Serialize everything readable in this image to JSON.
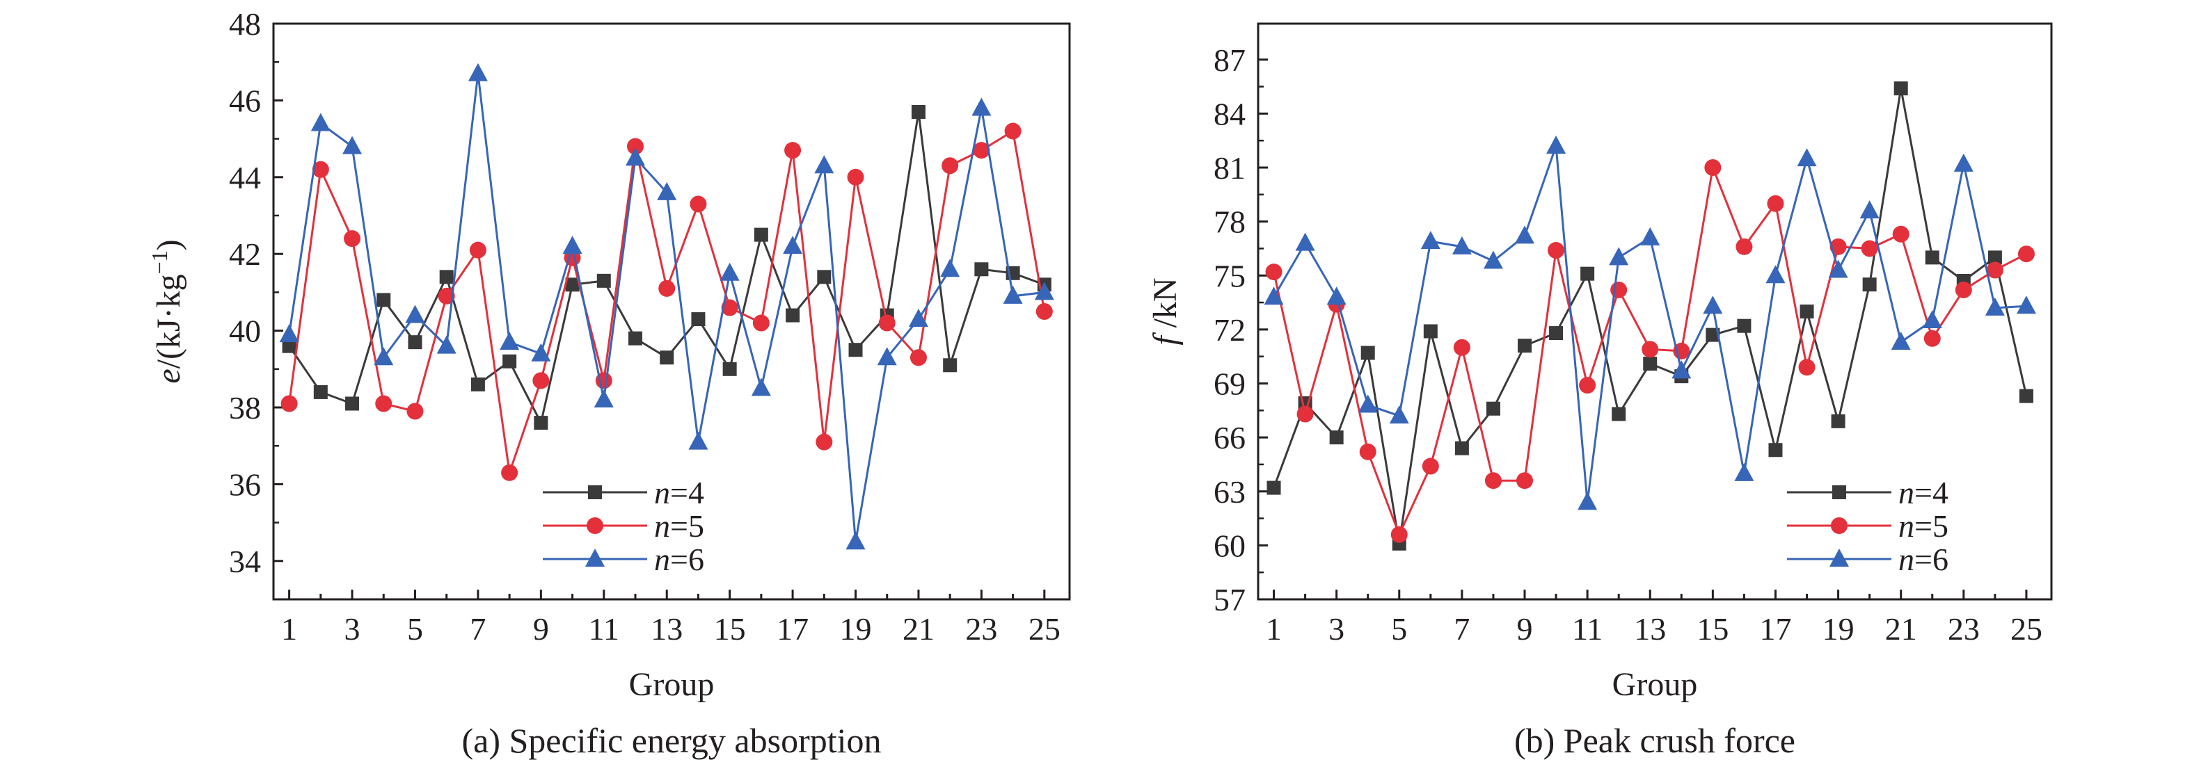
{
  "chart_data": [
    {
      "type": "line",
      "caption": "(a) Specific energy absorption",
      "xlabel": "Group",
      "ylabel": {
        "var": "e",
        "unit": "/(kJ·kg",
        "sup": "−1",
        "close": ")"
      },
      "xlim": [
        0.5,
        25.8
      ],
      "ylim": [
        33,
        48
      ],
      "xticks": [
        1,
        3,
        5,
        7,
        9,
        11,
        13,
        15,
        17,
        19,
        21,
        23,
        25
      ],
      "yticks": [
        34,
        36,
        38,
        40,
        42,
        44,
        46,
        48
      ],
      "x": [
        1,
        2,
        3,
        4,
        5,
        6,
        7,
        8,
        9,
        10,
        11,
        12,
        13,
        14,
        15,
        16,
        17,
        18,
        19,
        20,
        21,
        22,
        23,
        24,
        25
      ],
      "legend_position": "bottom-center",
      "series": [
        {
          "name_var": "n",
          "name_val": "=4",
          "color": "#3a3a3a",
          "marker": "square",
          "values": [
            39.6,
            38.4,
            38.1,
            40.8,
            39.7,
            41.4,
            38.6,
            39.2,
            37.6,
            41.2,
            41.3,
            39.8,
            39.3,
            40.3,
            39.0,
            42.5,
            40.4,
            41.4,
            39.5,
            40.4,
            45.7,
            39.1,
            41.6,
            41.5,
            41.2
          ]
        },
        {
          "name_var": "n",
          "name_val": "=5",
          "color": "#e3303b",
          "marker": "circle",
          "values": [
            38.1,
            44.2,
            42.4,
            38.1,
            37.9,
            40.9,
            42.1,
            36.3,
            38.7,
            41.9,
            38.7,
            44.8,
            41.1,
            43.3,
            40.6,
            40.2,
            44.7,
            37.1,
            44.0,
            40.2,
            39.3,
            44.3,
            44.7,
            45.2,
            40.5
          ]
        },
        {
          "name_var": "n",
          "name_val": "=6",
          "color": "#3765b8",
          "marker": "triangle",
          "values": [
            39.9,
            45.4,
            44.8,
            39.3,
            40.4,
            39.6,
            46.7,
            39.7,
            39.4,
            42.2,
            38.2,
            44.5,
            43.6,
            37.1,
            41.5,
            38.5,
            42.2,
            44.3,
            34.5,
            39.3,
            40.3,
            41.6,
            45.8,
            40.9,
            41.0
          ]
        }
      ]
    },
    {
      "type": "line",
      "caption": "(b) Peak crush force",
      "xlabel": "Group",
      "ylabel": {
        "var": "f",
        "unit": " /kN",
        "sup": "",
        "close": ""
      },
      "xlim": [
        0.5,
        25.8
      ],
      "ylim": [
        57,
        89
      ],
      "xticks": [
        1,
        3,
        5,
        7,
        9,
        11,
        13,
        15,
        17,
        19,
        21,
        23,
        25
      ],
      "yticks": [
        57,
        60,
        63,
        66,
        69,
        72,
        75,
        78,
        81,
        84,
        87
      ],
      "x": [
        1,
        2,
        3,
        4,
        5,
        6,
        7,
        8,
        9,
        10,
        11,
        12,
        13,
        14,
        15,
        16,
        17,
        18,
        19,
        20,
        21,
        22,
        23,
        24,
        25
      ],
      "legend_position": "bottom-right",
      "series": [
        {
          "name_var": "n",
          "name_val": "=4",
          "color": "#3a3a3a",
          "marker": "square",
          "values": [
            63.2,
            67.9,
            66.0,
            70.7,
            60.1,
            71.9,
            65.4,
            67.6,
            71.1,
            71.8,
            75.1,
            67.3,
            70.1,
            69.4,
            71.7,
            72.2,
            65.3,
            73.0,
            66.9,
            74.5,
            85.4,
            76.0,
            74.7,
            76.0,
            68.3
          ]
        },
        {
          "name_var": "n",
          "name_val": "=5",
          "color": "#e3303b",
          "marker": "circle",
          "values": [
            75.2,
            67.3,
            73.4,
            65.2,
            60.6,
            64.4,
            71.0,
            63.6,
            63.6,
            76.4,
            68.9,
            74.2,
            70.9,
            70.8,
            81.0,
            76.6,
            79.0,
            69.9,
            76.6,
            76.5,
            77.3,
            71.5,
            74.2,
            75.3,
            76.2
          ]
        },
        {
          "name_var": "n",
          "name_val": "=6",
          "color": "#3765b8",
          "marker": "triangle",
          "values": [
            73.8,
            76.8,
            73.8,
            67.8,
            67.2,
            76.9,
            76.6,
            75.8,
            77.2,
            82.2,
            62.4,
            76.0,
            77.1,
            69.7,
            73.3,
            64.0,
            75.0,
            81.5,
            75.3,
            78.6,
            71.3,
            72.5,
            81.2,
            73.2,
            73.3
          ]
        }
      ]
    }
  ]
}
